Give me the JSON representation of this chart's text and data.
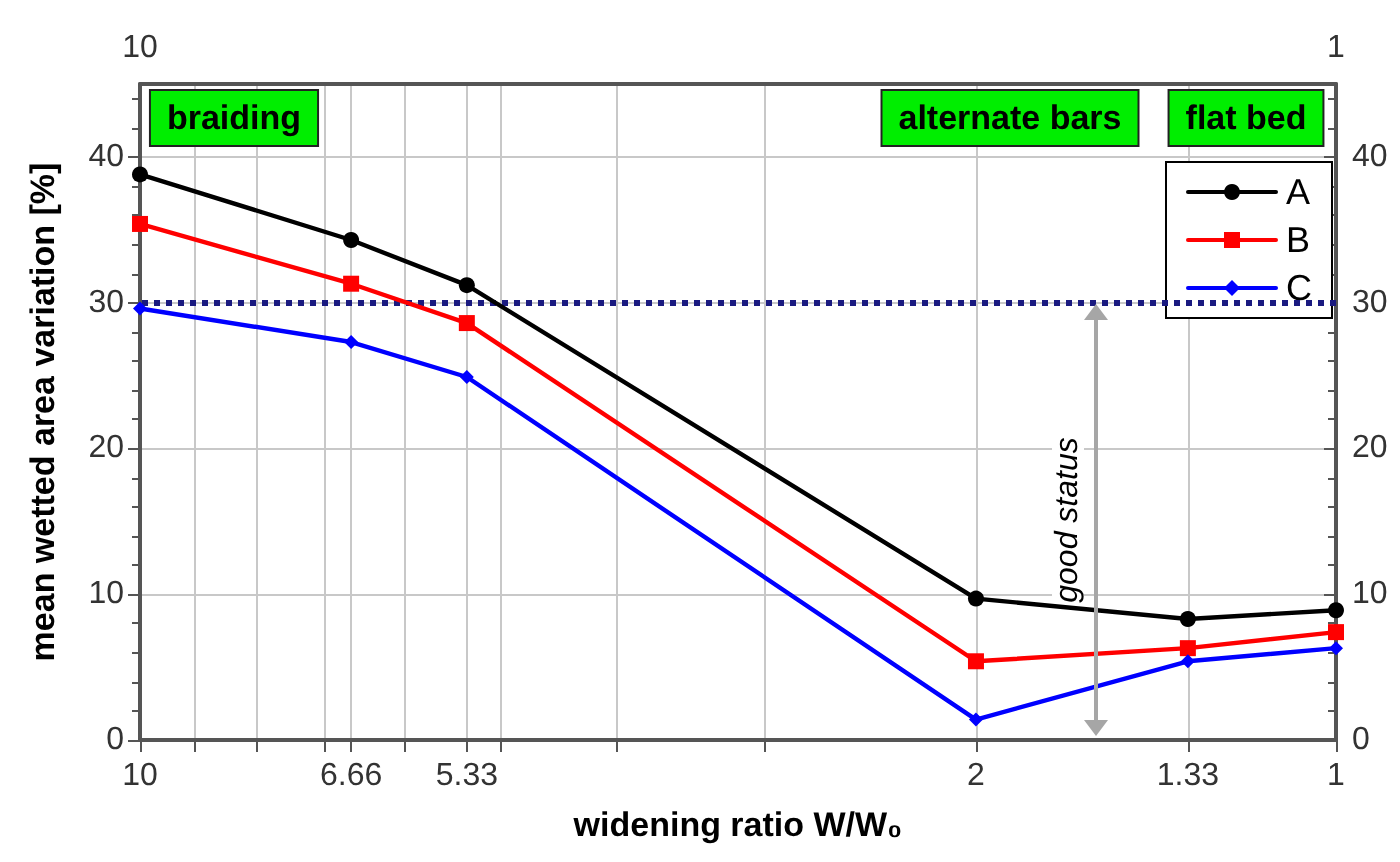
{
  "chart_data": {
    "type": "line",
    "xlabel": "widening ratio W/W₀",
    "ylabel": "mean wetted area variation [%]",
    "x": [
      10,
      6.66,
      5.33,
      2,
      1.33,
      1
    ],
    "series": [
      {
        "name": "A",
        "color": "#000000",
        "marker": "circle",
        "values": [
          38.8,
          34.3,
          31.2,
          9.7,
          8.3,
          8.9
        ]
      },
      {
        "name": "B",
        "color": "#ff0000",
        "marker": "square",
        "values": [
          35.4,
          31.3,
          28.6,
          5.4,
          6.3,
          7.4
        ]
      },
      {
        "name": "C",
        "color": "#0000ff",
        "marker": "diamond",
        "values": [
          29.6,
          27.3,
          24.9,
          1.4,
          5.4,
          6.3
        ]
      }
    ],
    "log": "x",
    "xlim": [
      10,
      1
    ],
    "xticks": [
      10,
      {
        "value": 9,
        "label": null
      },
      {
        "value": 8,
        "label": null
      },
      {
        "value": 7,
        "label": null
      },
      6.66,
      {
        "value": 6,
        "label": null
      },
      5.33,
      {
        "value": 5,
        "label": null
      },
      {
        "value": 4,
        "label": null
      },
      {
        "value": 3,
        "label": null
      },
      2,
      1.33,
      1
    ],
    "x2lim": [
      10,
      1
    ],
    "x2ticks": [
      10,
      1
    ],
    "ylim": [
      0,
      45
    ],
    "yticks": [
      0,
      10,
      20,
      30,
      40
    ],
    "y2lim": [
      0,
      45
    ],
    "y2ticks": [
      0,
      10,
      20,
      30,
      40
    ],
    "grid": true,
    "legend": "top right",
    "line_style": "solid",
    "ref_lines": [
      {
        "axis": "y",
        "value": 30,
        "color": "#1a1a80",
        "line_style": "dotted"
      }
    ],
    "annotations": [
      "braiding",
      "alternate bars",
      "flat bed",
      "good status"
    ]
  }
}
